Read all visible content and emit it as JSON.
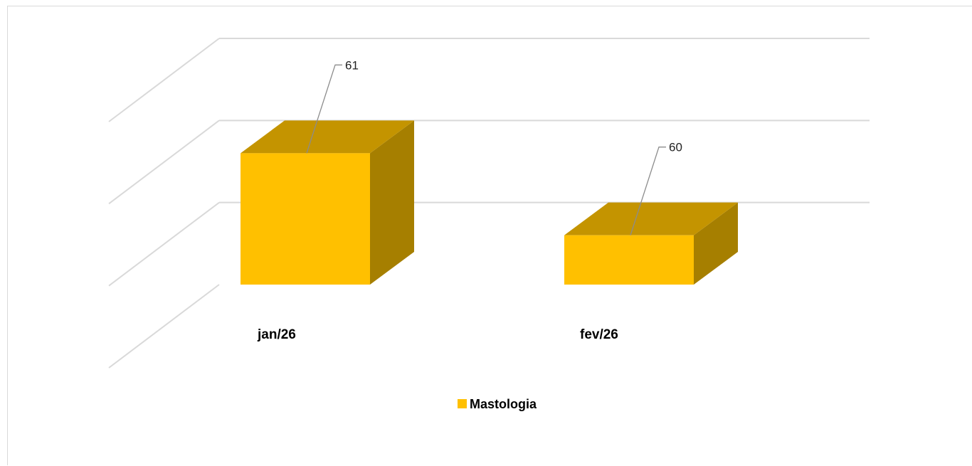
{
  "chart_data": {
    "type": "bar",
    "three_d": true,
    "categories": [
      "jan/26",
      "fev/26"
    ],
    "series": [
      {
        "name": "Mastologia",
        "values": [
          61,
          60
        ],
        "color": "#FFC000"
      }
    ],
    "ylim": [
      59,
      62
    ],
    "yticks": [
      59,
      60,
      61,
      62
    ],
    "y_tick_labels_visible": false,
    "grid": true,
    "legend": "bottom",
    "data_labels": true,
    "colors": {
      "front": "#FFC000",
      "top": "#C49400",
      "side": "#A67F00",
      "grid": "#D9D9D9",
      "leader": "#8C8C8C"
    }
  }
}
